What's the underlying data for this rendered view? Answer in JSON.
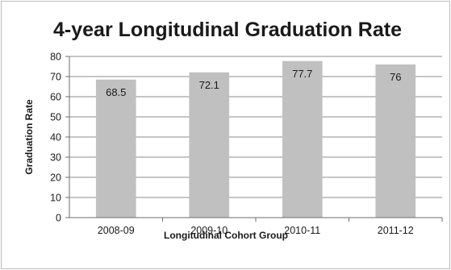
{
  "chart_data": {
    "type": "bar",
    "title": "4-year Longitudinal Graduation Rate",
    "xlabel": "Longitudinal Cohort Group",
    "ylabel": "Graduation Rate",
    "categories": [
      "2008-09",
      "2009-10",
      "2010-11",
      "2011-12"
    ],
    "values": [
      68.5,
      72.1,
      77.7,
      76
    ],
    "data_labels": [
      "68.5",
      "72.1",
      "77.7",
      "76"
    ],
    "ylim": [
      0,
      80
    ],
    "yticks": [
      0,
      10,
      20,
      30,
      40,
      50,
      60,
      70,
      80
    ],
    "grid": true,
    "legend": "none",
    "bar_color": "#c0c0c0",
    "grid_color": "#8c8c8c"
  }
}
